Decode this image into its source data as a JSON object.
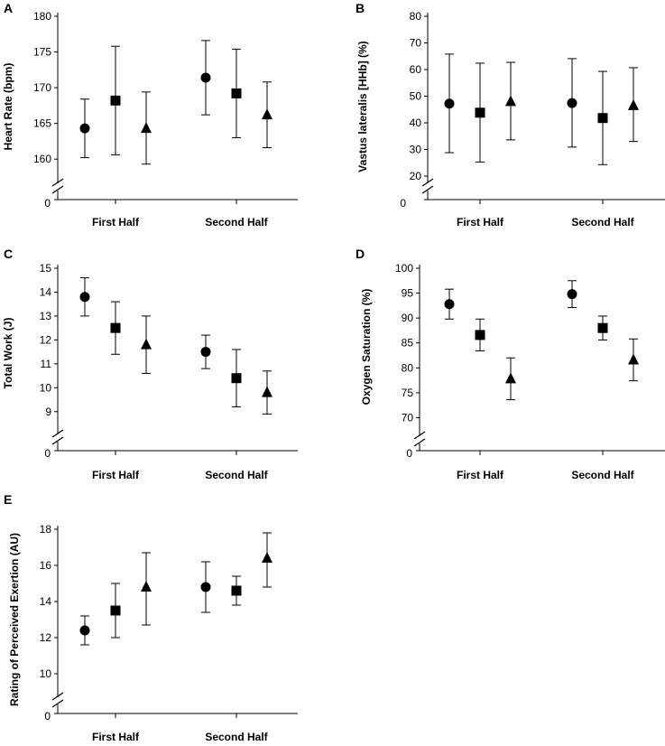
{
  "chart_data": [
    {
      "panel": "A",
      "type": "scatter",
      "title": "",
      "ylabel": "Heart Rate (bpm)",
      "categories": [
        "First Half",
        "Second Half"
      ],
      "ylim": [
        158,
        180
      ],
      "yticks": [
        160,
        165,
        170,
        175,
        180
      ],
      "break_zero": "0",
      "series": [
        {
          "marker": "circle",
          "values": [
            164.3,
            171.4
          ],
          "err_low": [
            160.2,
            166.2
          ],
          "err_high": [
            168.4,
            176.6
          ]
        },
        {
          "marker": "square",
          "values": [
            168.2,
            169.2
          ],
          "err_low": [
            160.6,
            163.0
          ],
          "err_high": [
            175.8,
            175.4
          ]
        },
        {
          "marker": "triangle",
          "values": [
            164.3,
            166.2
          ],
          "err_low": [
            159.3,
            161.6
          ],
          "err_high": [
            169.4,
            170.8
          ]
        }
      ]
    },
    {
      "panel": "B",
      "type": "scatter",
      "title": "",
      "ylabel": "Vastus lateralis [HHb] (%)",
      "categories": [
        "First Half",
        "Second Half"
      ],
      "ylim": [
        20,
        80
      ],
      "yticks": [
        20,
        30,
        40,
        50,
        60,
        70,
        80
      ],
      "break_zero": "0",
      "series": [
        {
          "marker": "circle",
          "values": [
            47.2,
            47.4
          ],
          "err_low": [
            28.8,
            30.9
          ],
          "err_high": [
            65.8,
            64.1
          ]
        },
        {
          "marker": "square",
          "values": [
            43.8,
            41.8
          ],
          "err_low": [
            25.3,
            24.3
          ],
          "err_high": [
            62.4,
            59.3
          ]
        },
        {
          "marker": "triangle",
          "values": [
            48.0,
            46.5
          ],
          "err_low": [
            33.6,
            33.0
          ],
          "err_high": [
            62.7,
            60.7
          ]
        }
      ]
    },
    {
      "panel": "C",
      "type": "scatter",
      "title": "",
      "ylabel": "Total Work (J)",
      "categories": [
        "First Half",
        "Second Half"
      ],
      "ylim": [
        8.5,
        15
      ],
      "yticks": [
        9,
        10,
        11,
        12,
        13,
        14,
        15
      ],
      "break_zero": "0",
      "series": [
        {
          "marker": "circle",
          "values": [
            13.8,
            11.5
          ],
          "err_low": [
            13.0,
            10.8
          ],
          "err_high": [
            14.6,
            12.2
          ]
        },
        {
          "marker": "square",
          "values": [
            12.5,
            10.4
          ],
          "err_low": [
            11.4,
            9.2
          ],
          "err_high": [
            13.6,
            11.6
          ]
        },
        {
          "marker": "triangle",
          "values": [
            11.8,
            9.8
          ],
          "err_low": [
            10.6,
            8.9
          ],
          "err_high": [
            13.0,
            10.7
          ]
        }
      ]
    },
    {
      "panel": "D",
      "type": "scatter",
      "title": "",
      "ylabel": "Oxygen Saturation (%)",
      "categories": [
        "First Half",
        "Second Half"
      ],
      "ylim": [
        67,
        100
      ],
      "yticks": [
        70,
        75,
        80,
        85,
        90,
        95,
        100
      ],
      "break_zero": "0",
      "series": [
        {
          "marker": "circle",
          "values": [
            92.8,
            94.8
          ],
          "err_low": [
            89.8,
            92.1
          ],
          "err_high": [
            95.8,
            97.5
          ]
        },
        {
          "marker": "square",
          "values": [
            86.6,
            88.0
          ],
          "err_low": [
            83.4,
            85.6
          ],
          "err_high": [
            89.8,
            90.4
          ]
        },
        {
          "marker": "triangle",
          "values": [
            77.8,
            81.6
          ],
          "err_low": [
            73.6,
            77.4
          ],
          "err_high": [
            82.0,
            85.8
          ]
        }
      ]
    },
    {
      "panel": "E",
      "type": "scatter",
      "title": "",
      "ylabel": "Rating of Perceived Exertion (AU)",
      "categories": [
        "First Half",
        "Second Half"
      ],
      "ylim": [
        9,
        18
      ],
      "yticks": [
        10,
        12,
        14,
        16,
        18
      ],
      "break_zero": "0",
      "series": [
        {
          "marker": "circle",
          "values": [
            12.4,
            14.8
          ],
          "err_low": [
            11.6,
            13.4
          ],
          "err_high": [
            13.2,
            16.2
          ]
        },
        {
          "marker": "square",
          "values": [
            13.5,
            14.6
          ],
          "err_low": [
            12.0,
            13.8
          ],
          "err_high": [
            15.0,
            15.4
          ]
        },
        {
          "marker": "triangle",
          "values": [
            14.8,
            16.4
          ],
          "err_low": [
            12.7,
            14.8
          ],
          "err_high": [
            16.7,
            17.8
          ]
        }
      ]
    }
  ]
}
